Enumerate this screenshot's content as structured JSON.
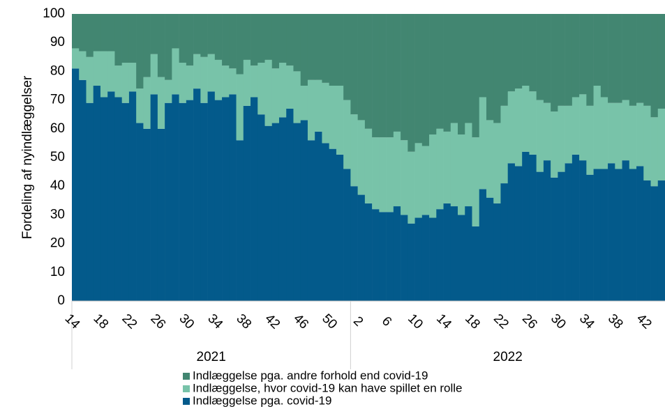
{
  "chart_data": {
    "type": "stacked_bar",
    "y_label": "Fordeling af nyindlæggelser",
    "ylim": [
      0,
      100
    ],
    "yticks": [
      0,
      10,
      20,
      30,
      40,
      50,
      60,
      70,
      80,
      90,
      100
    ],
    "groups": [
      {
        "label": "2021",
        "categories": [
          "14",
          null,
          null,
          null,
          "18",
          null,
          null,
          null,
          "22",
          null,
          null,
          null,
          "26",
          null,
          null,
          null,
          "30",
          null,
          null,
          null,
          "34",
          null,
          null,
          null,
          "38",
          null,
          null,
          null,
          "42",
          null,
          null,
          null,
          "46",
          null,
          null,
          null,
          "50",
          null,
          null
        ]
      },
      {
        "label": "2022",
        "categories": [
          null,
          "2",
          null,
          null,
          null,
          "6",
          null,
          null,
          null,
          "10",
          null,
          null,
          null,
          "14",
          null,
          null,
          null,
          "18",
          null,
          null,
          null,
          "22",
          null,
          null,
          null,
          "26",
          null,
          null,
          null,
          "30",
          null,
          null,
          null,
          "34",
          null,
          null,
          null,
          "38",
          null,
          null,
          null,
          "42",
          null,
          null
        ]
      }
    ],
    "series": [
      {
        "name": "Indlæggelse pga. covid-19",
        "color": "#035a8b",
        "values": [
          81,
          77,
          69,
          75,
          71,
          73,
          71,
          69,
          73,
          62,
          60,
          72,
          60,
          69,
          72,
          69,
          70,
          74,
          69,
          73,
          70,
          71,
          72,
          56,
          68,
          71,
          65,
          61,
          62,
          64,
          67,
          62,
          63,
          56,
          59,
          55,
          53,
          51,
          46,
          40,
          37,
          34,
          32,
          31,
          31,
          33,
          30,
          27,
          29,
          30,
          29,
          32,
          34,
          33,
          30,
          33,
          26,
          39,
          36,
          34,
          41,
          48,
          47,
          52,
          51,
          45,
          49,
          43,
          45,
          48,
          51,
          49,
          44,
          46,
          46,
          48,
          46,
          49,
          46,
          47,
          42,
          40,
          42
        ]
      },
      {
        "name": "Indlæggelse, hvor covid-19 kan have spillet en rolle",
        "color": "#78c3a9",
        "values": [
          7,
          10,
          16,
          12,
          16,
          14,
          11,
          14,
          10,
          12,
          18,
          14,
          18,
          8,
          16,
          14,
          12,
          12,
          16,
          13,
          14,
          11,
          9,
          23,
          16,
          11,
          18,
          23,
          19,
          19,
          15,
          18,
          12,
          21,
          18,
          21,
          22,
          24,
          24,
          25,
          26,
          26,
          25,
          26,
          26,
          26,
          26,
          25,
          26,
          24,
          29,
          28,
          25,
          29,
          28,
          29,
          31,
          32,
          27,
          28,
          27,
          25,
          27,
          23,
          22,
          25,
          20,
          23,
          23,
          20,
          20,
          23,
          24,
          29,
          25,
          21,
          23,
          21,
          22,
          22,
          26,
          24,
          25
        ]
      },
      {
        "name": "Indlæggelse pga. andre forhold end covid-19",
        "color": "#428671",
        "values": [
          12,
          13,
          15,
          13,
          13,
          13,
          18,
          17,
          17,
          26,
          22,
          14,
          22,
          23,
          12,
          17,
          18,
          14,
          15,
          14,
          16,
          18,
          19,
          21,
          16,
          18,
          17,
          16,
          19,
          17,
          18,
          20,
          25,
          23,
          23,
          24,
          25,
          25,
          30,
          35,
          37,
          40,
          43,
          43,
          43,
          41,
          44,
          48,
          45,
          46,
          42,
          40,
          41,
          38,
          42,
          38,
          43,
          29,
          37,
          38,
          32,
          27,
          26,
          25,
          27,
          30,
          31,
          34,
          32,
          32,
          29,
          28,
          32,
          25,
          29,
          31,
          31,
          30,
          32,
          31,
          32,
          36,
          33
        ]
      }
    ]
  }
}
